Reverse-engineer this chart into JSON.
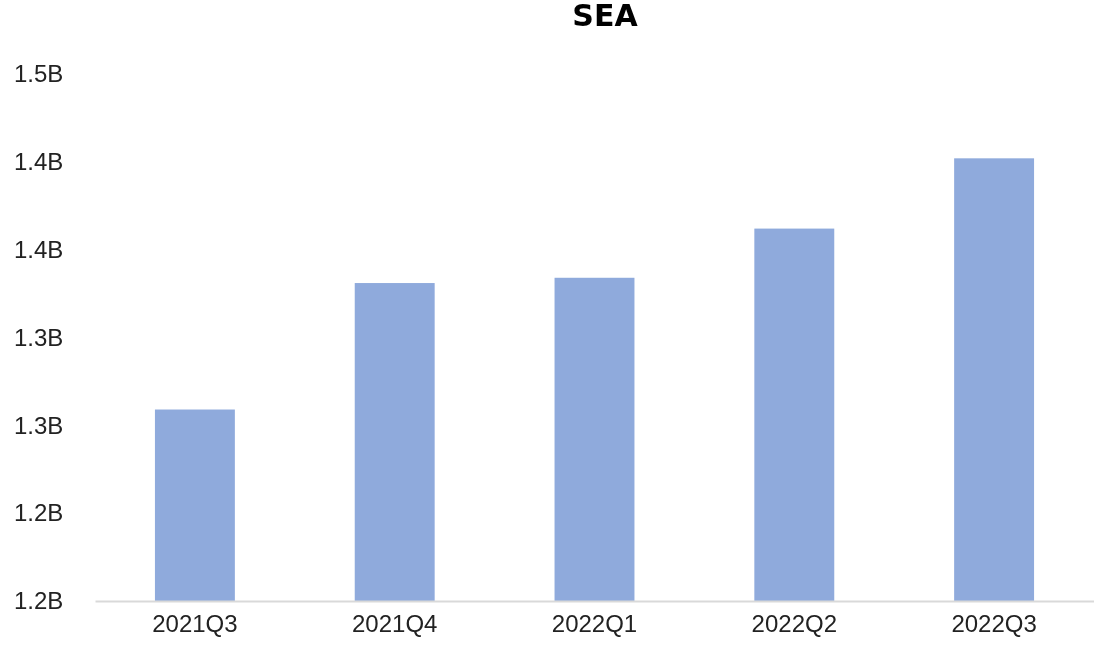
{
  "chart_data": {
    "type": "bar",
    "title": "SEA",
    "categories": [
      "2021Q3",
      "2021Q4",
      "2022Q1",
      "2022Q2",
      "2022Q3"
    ],
    "values": [
      1.309,
      1.381,
      1.384,
      1.412,
      1.452
    ],
    "color": "#8faadc",
    "ylim": [
      1.2,
      1.5
    ],
    "yticks": [
      {
        "value": 1.2,
        "label": "1.2B"
      },
      {
        "value": 1.25,
        "label": "1.2B"
      },
      {
        "value": 1.3,
        "label": "1.3B"
      },
      {
        "value": 1.35,
        "label": "1.3B"
      },
      {
        "value": 1.4,
        "label": "1.4B"
      },
      {
        "value": 1.45,
        "label": "1.4B"
      },
      {
        "value": 1.5,
        "label": "1.5B"
      }
    ],
    "grid": false
  }
}
